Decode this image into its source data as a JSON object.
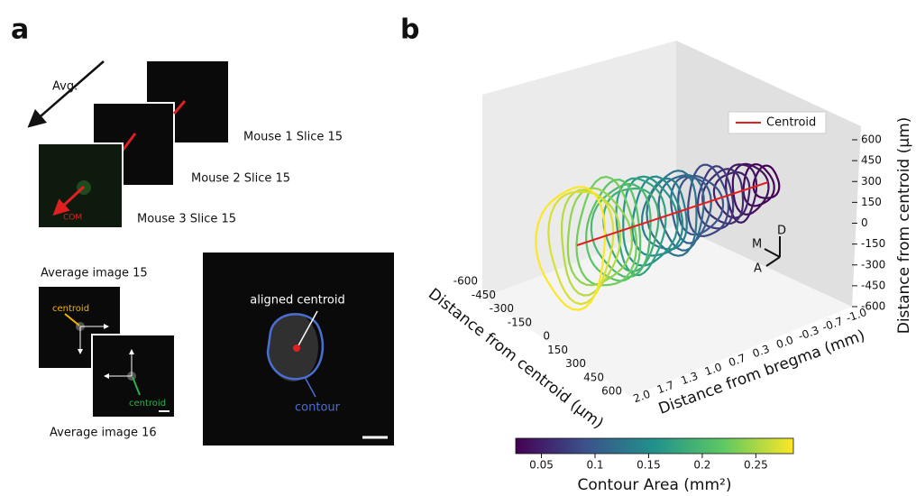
{
  "panel_a": {
    "label": "a",
    "arrow_label": "Avg.",
    "stack": [
      "Mouse 1 Slice 15",
      "Mouse 2 Slice 15",
      "Mouse 3 Slice 15"
    ],
    "com_label": "COM",
    "average_images": [
      "Average image 15",
      "Average image 16"
    ],
    "centroid_labels": [
      "centroid",
      "centroid"
    ],
    "aligned_centroid": "aligned centroid",
    "contour": "contour"
  },
  "panel_b": {
    "label": "b",
    "legend": "Centroid",
    "z_axis": {
      "title": "Distance from centroid (μm)",
      "ticks": [
        "600",
        "450",
        "300",
        "150",
        "0",
        "-150",
        "-300",
        "-450",
        "-600"
      ]
    },
    "x_axis": {
      "title": "Distance from centroid (μm)",
      "ticks": [
        "-600",
        "-450",
        "-300",
        "-150",
        "0",
        "150",
        "300",
        "450",
        "600"
      ]
    },
    "y_axis": {
      "title": "Distance from bregma (mm)",
      "ticks": [
        "2.0",
        "1.7",
        "1.3",
        "1.0",
        "0.7",
        "0.3",
        "0.0",
        "-0.3",
        "-0.7",
        "-1.0"
      ]
    },
    "orientation": [
      "M",
      "D",
      "A"
    ],
    "colorbar": {
      "title": "Contour Area (mm²)",
      "lim": [
        0.026,
        0.285
      ],
      "ticks": [
        0.05,
        0.1,
        0.15,
        0.2,
        0.25
      ]
    }
  }
}
